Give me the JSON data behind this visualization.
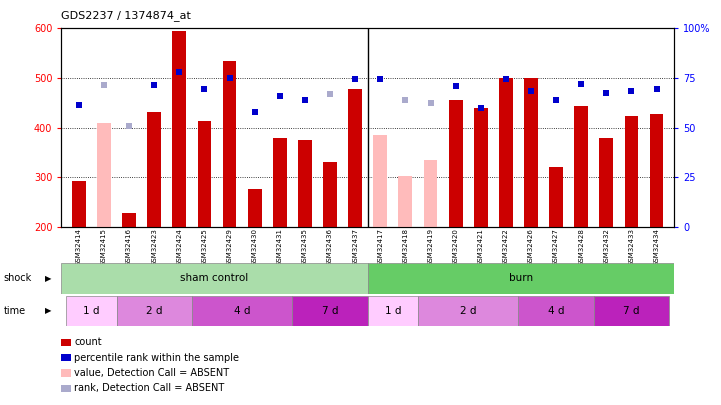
{
  "title": "GDS2237 / 1374874_at",
  "samples": [
    "GSM32414",
    "GSM32415",
    "GSM32416",
    "GSM32423",
    "GSM32424",
    "GSM32425",
    "GSM32429",
    "GSM32430",
    "GSM32431",
    "GSM32435",
    "GSM32436",
    "GSM32437",
    "GSM32417",
    "GSM32418",
    "GSM32419",
    "GSM32420",
    "GSM32421",
    "GSM32422",
    "GSM32426",
    "GSM32427",
    "GSM32428",
    "GSM32432",
    "GSM32433",
    "GSM32434"
  ],
  "bar_values": [
    293,
    null,
    228,
    432,
    594,
    413,
    535,
    277,
    378,
    375,
    330,
    477,
    null,
    null,
    null,
    455,
    440,
    499,
    500,
    320,
    443,
    378,
    423,
    427
  ],
  "bar_absent": [
    null,
    410,
    null,
    null,
    null,
    null,
    null,
    null,
    null,
    null,
    null,
    null,
    385,
    302,
    334,
    null,
    null,
    null,
    null,
    null,
    null,
    null,
    null,
    null
  ],
  "dot_present": [
    445,
    null,
    null,
    485,
    513,
    478,
    500,
    432,
    463,
    456,
    null,
    497,
    497,
    null,
    null,
    483,
    440,
    497,
    473,
    455,
    487,
    470,
    473,
    478
  ],
  "dot_absent": [
    null,
    485,
    403,
    null,
    null,
    null,
    null,
    null,
    null,
    null,
    468,
    null,
    null,
    455,
    450,
    null,
    null,
    null,
    null,
    null,
    null,
    null,
    null,
    null
  ],
  "ylim_left": [
    200,
    600
  ],
  "ylim_right": [
    0,
    100
  ],
  "yticks_left": [
    200,
    300,
    400,
    500,
    600
  ],
  "yticks_right": [
    0,
    25,
    50,
    75,
    100
  ],
  "bar_color": "#cc0000",
  "bar_absent_color": "#ffbbbb",
  "dot_color": "#0000cc",
  "dot_absent_color": "#aaaacc",
  "sham_color": "#aaddaa",
  "burn_color": "#66cc66",
  "time_colors": [
    "#ffccff",
    "#dd88dd",
    "#cc55cc",
    "#bb22bb"
  ],
  "time_groups": [
    {
      "label": "1 d",
      "start": 0,
      "end": 1
    },
    {
      "label": "2 d",
      "start": 2,
      "end": 4
    },
    {
      "label": "4 d",
      "start": 5,
      "end": 8
    },
    {
      "label": "7 d",
      "start": 9,
      "end": 11
    },
    {
      "label": "1 d",
      "start": 12,
      "end": 13
    },
    {
      "label": "2 d",
      "start": 14,
      "end": 17
    },
    {
      "label": "4 d",
      "start": 18,
      "end": 20
    },
    {
      "label": "7 d",
      "start": 21,
      "end": 23
    }
  ],
  "sham_border": 11.5,
  "n": 24
}
